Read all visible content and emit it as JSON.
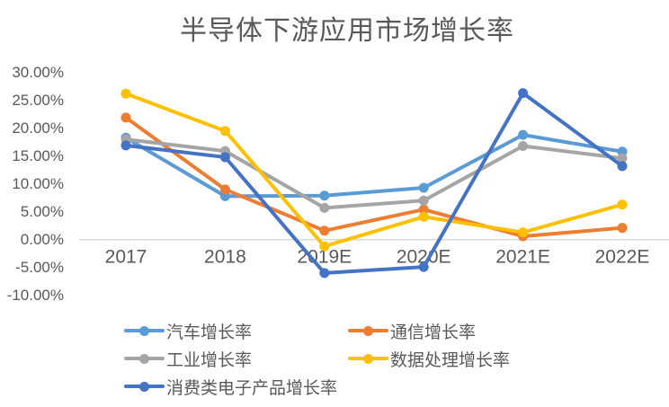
{
  "chart_data": {
    "type": "line",
    "title": "半导体下游应用市场增长率",
    "categories": [
      "2017",
      "2018",
      "2019E",
      "2020E",
      "2021E",
      "2022E"
    ],
    "series": [
      {
        "name": "汽车增长率",
        "color": "#5B9BD5",
        "values": [
          18.3,
          7.8,
          7.9,
          9.3,
          18.8,
          15.8
        ]
      },
      {
        "name": "通信增长率",
        "color": "#ED7D31",
        "values": [
          21.9,
          9.0,
          1.6,
          5.4,
          0.6,
          2.1
        ]
      },
      {
        "name": "工业增长率",
        "color": "#A5A5A5",
        "values": [
          18.0,
          15.9,
          5.7,
          7.0,
          16.8,
          14.6
        ]
      },
      {
        "name": "数据处理增长率",
        "color": "#FFC000",
        "values": [
          26.2,
          19.5,
          -1.2,
          4.1,
          1.3,
          6.3
        ]
      },
      {
        "name": "消费类电子产品增长率",
        "color": "#4472C4",
        "values": [
          16.9,
          14.8,
          -6.0,
          -4.9,
          26.3,
          13.2
        ]
      }
    ],
    "ylim": [
      -10,
      30
    ],
    "yticks": [
      {
        "label": "30.00%",
        "value": 30
      },
      {
        "label": "25.00%",
        "value": 25
      },
      {
        "label": "20.00%",
        "value": 20
      },
      {
        "label": "15.00%",
        "value": 15
      },
      {
        "label": "10.00%",
        "value": 10
      },
      {
        "label": "5.00%",
        "value": 5
      },
      {
        "label": "0.00%",
        "value": 0
      },
      {
        "label": "-5.00%",
        "value": -5
      },
      {
        "label": "-10.00%",
        "value": -10
      }
    ],
    "xlabel": "",
    "ylabel": "",
    "grid": false,
    "legend_position": "bottom",
    "text_color": "#595959",
    "axis_line_color": "#D9D9D9"
  }
}
